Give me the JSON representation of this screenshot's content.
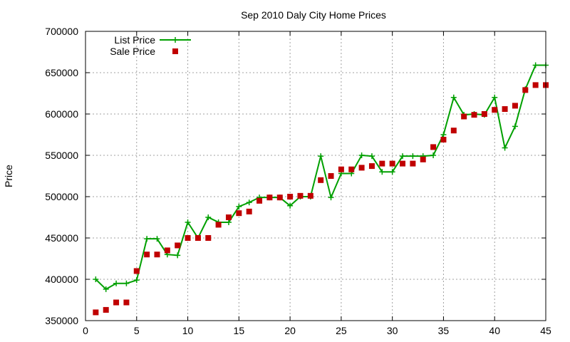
{
  "chart_data": {
    "type": "line",
    "title": "Sep 2010 Daly City Home Prices",
    "xlabel": "",
    "ylabel": "Price",
    "xlim": [
      0,
      45
    ],
    "ylim": [
      350000,
      700000
    ],
    "x_ticks": [
      0,
      5,
      10,
      15,
      20,
      25,
      30,
      35,
      40,
      45
    ],
    "y_ticks": [
      350000,
      400000,
      450000,
      500000,
      550000,
      600000,
      650000,
      700000
    ],
    "grid": true,
    "legend_position": "top-left",
    "series": [
      {
        "name": "List Price",
        "style": "linespoints",
        "color": "#00a000",
        "x": [
          1,
          2,
          3,
          4,
          5,
          6,
          7,
          8,
          9,
          10,
          11,
          12,
          13,
          14,
          15,
          16,
          17,
          18,
          19,
          20,
          21,
          22,
          23,
          24,
          25,
          26,
          27,
          28,
          29,
          30,
          31,
          32,
          33,
          34,
          35,
          36,
          37,
          38,
          39,
          40,
          41,
          42,
          43,
          44,
          45
        ],
        "y": [
          400000,
          388000,
          395000,
          395000,
          399000,
          449000,
          449000,
          430000,
          429000,
          469000,
          450000,
          475000,
          469000,
          469000,
          488000,
          493000,
          499000,
          499000,
          499000,
          489000,
          500000,
          500000,
          549000,
          499000,
          528000,
          528000,
          550000,
          549000,
          530000,
          530000,
          549000,
          549000,
          549000,
          550000,
          575000,
          620000,
          599000,
          600000,
          599000,
          620000,
          559000,
          585000,
          630000,
          659000,
          659000
        ]
      },
      {
        "name": "Sale Price",
        "style": "points",
        "color": "#c00000",
        "x": [
          1,
          2,
          3,
          4,
          5,
          6,
          7,
          8,
          9,
          10,
          11,
          12,
          13,
          14,
          15,
          16,
          17,
          18,
          19,
          20,
          21,
          22,
          23,
          24,
          25,
          26,
          27,
          28,
          29,
          30,
          31,
          32,
          33,
          34,
          35,
          36,
          37,
          38,
          39,
          40,
          41,
          42,
          43,
          44,
          45
        ],
        "y": [
          360000,
          363000,
          372000,
          372000,
          410000,
          430000,
          430000,
          435000,
          441000,
          450000,
          450000,
          450000,
          466000,
          475000,
          480000,
          482000,
          495000,
          499000,
          499000,
          500000,
          501000,
          501000,
          520000,
          525000,
          533000,
          533000,
          535000,
          537000,
          540000,
          540000,
          540000,
          540000,
          545000,
          560000,
          569000,
          580000,
          597000,
          599000,
          600000,
          605000,
          606000,
          610000,
          629000,
          635000,
          635000
        ]
      }
    ]
  }
}
